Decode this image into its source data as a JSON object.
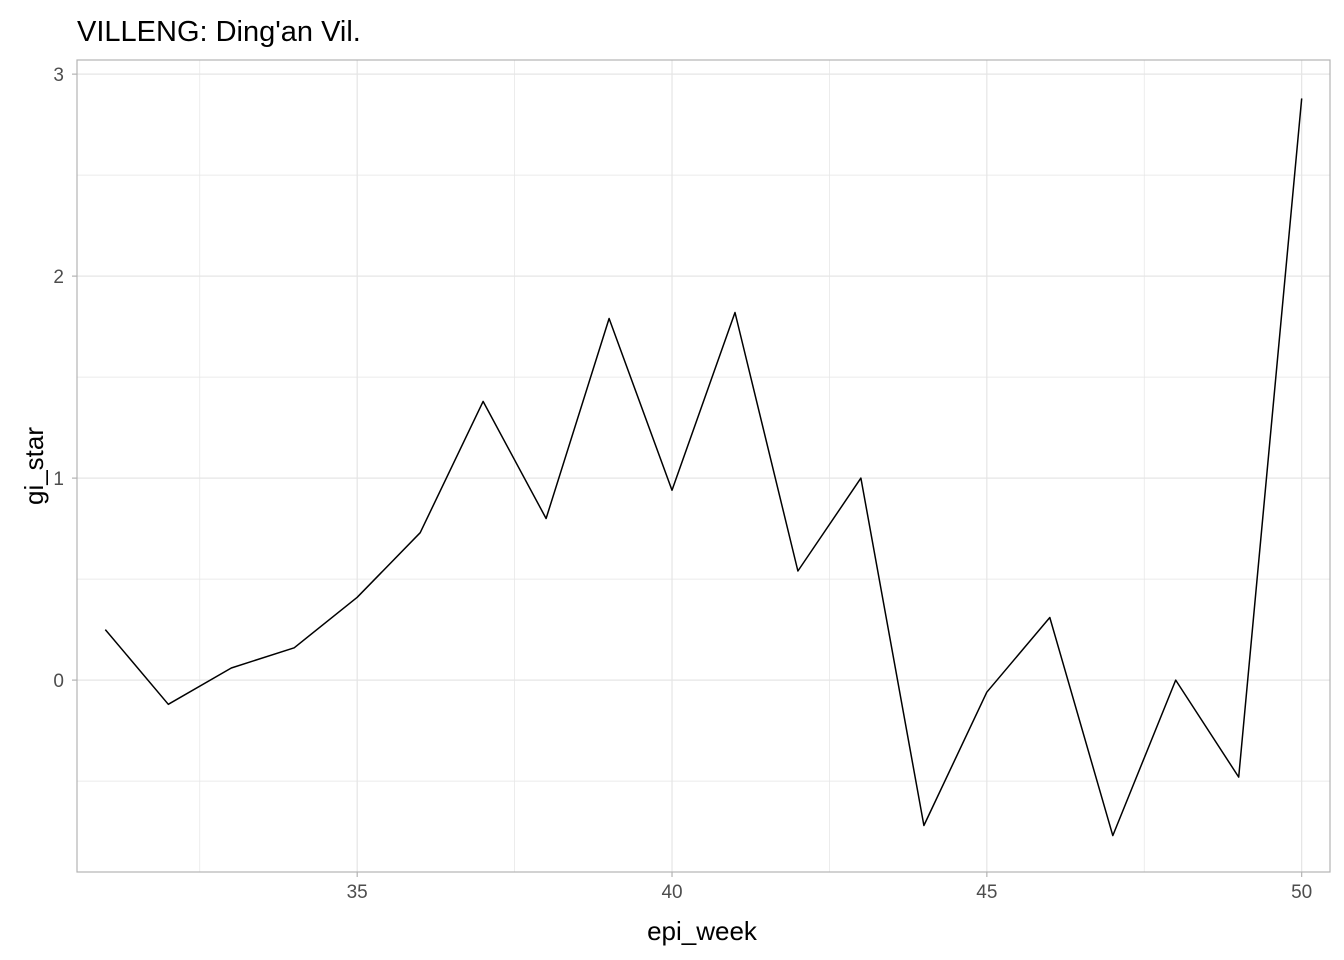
{
  "chart_data": {
    "type": "line",
    "title": "VILLENG: Ding'an Vil.",
    "xlabel": "epi_week",
    "ylabel": "gi_star",
    "xlim": [
      30.55,
      50.45
    ],
    "ylim": [
      -0.95,
      3.07
    ],
    "x_ticks": [
      35,
      40,
      45,
      50
    ],
    "y_ticks": [
      0,
      1,
      2,
      3
    ],
    "x_minor": [
      32.5,
      37.5,
      42.5,
      47.5
    ],
    "y_minor": [
      -0.5,
      0.5,
      1.5,
      2.5
    ],
    "grid": true,
    "legend": "none",
    "series": [
      {
        "color": "#000000",
        "x": [
          31,
          32,
          33,
          34,
          35,
          36,
          37,
          38,
          39,
          40,
          41,
          42,
          43,
          44,
          45,
          46,
          47,
          48,
          49,
          50
        ],
        "y": [
          0.25,
          -0.12,
          0.06,
          0.16,
          0.41,
          0.73,
          1.38,
          0.8,
          1.79,
          0.94,
          1.82,
          0.54,
          1.0,
          -0.72,
          -0.06,
          0.31,
          -0.77,
          0.0,
          -0.48,
          2.88
        ]
      }
    ],
    "colors": {
      "grid": "#e5e5e5",
      "axis_line": "#b3b3b3",
      "tick_label": "#4d4d4d",
      "line": "#000000"
    }
  }
}
